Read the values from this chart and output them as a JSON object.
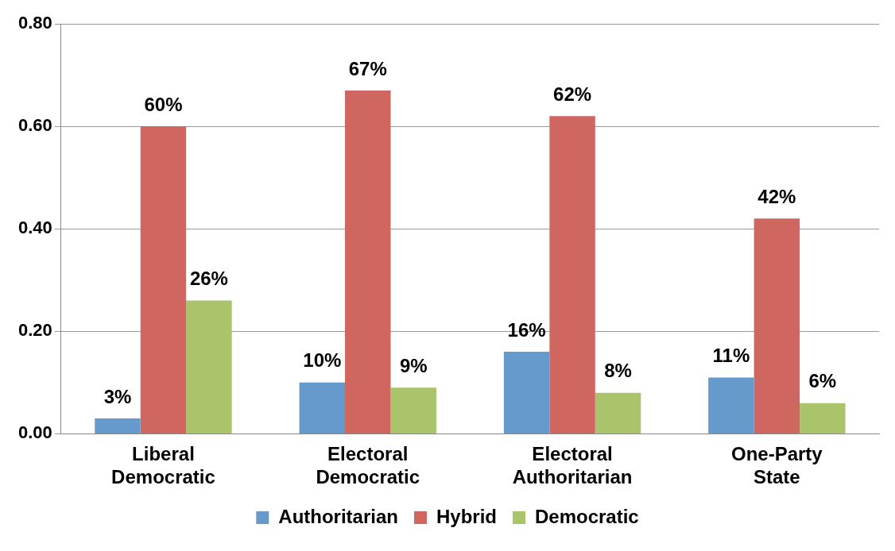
{
  "chart_data": {
    "type": "bar",
    "categories": [
      "Liberal Democratic",
      "Electoral Democratic",
      "Electoral Authoritarian",
      "One-Party State"
    ],
    "series": [
      {
        "name": "Authoritarian",
        "color": "#6699cc",
        "values": [
          0.03,
          0.1,
          0.16,
          0.11
        ],
        "value_labels": [
          "3%",
          "10%",
          "16%",
          "11%"
        ]
      },
      {
        "name": "Hybrid",
        "color": "#cf6660",
        "values": [
          0.6,
          0.67,
          0.62,
          0.42
        ],
        "value_labels": [
          "60%",
          "67%",
          "62%",
          "42%"
        ]
      },
      {
        "name": "Democratic",
        "color": "#a9c46b",
        "values": [
          0.26,
          0.09,
          0.08,
          0.06
        ],
        "value_labels": [
          "26%",
          "9%",
          "8%",
          "6%"
        ]
      }
    ],
    "ylim": [
      0,
      0.8
    ],
    "yticks": [
      {
        "value": 0,
        "label": "0.00"
      },
      {
        "value": 0.2,
        "label": "0.20"
      },
      {
        "value": 0.4,
        "label": "0.40"
      },
      {
        "value": 0.6,
        "label": "0.60"
      },
      {
        "value": 0.8,
        "label": "0.80"
      }
    ],
    "grid": "y",
    "legend": "bottom"
  }
}
